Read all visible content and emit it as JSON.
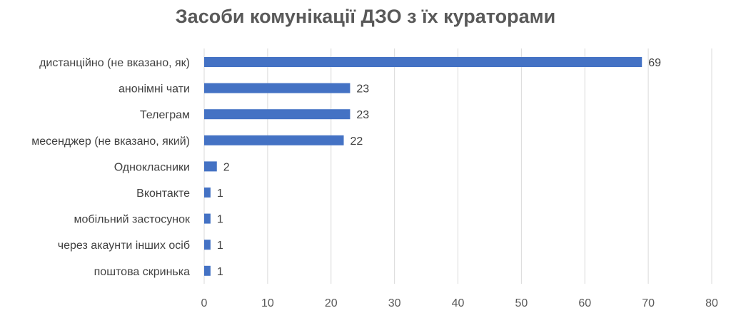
{
  "chart_data": {
    "type": "bar",
    "orientation": "horizontal",
    "title": "Засоби комунікації ДЗО з їх кураторами",
    "xlabel": "",
    "ylabel": "",
    "categories": [
      "дистанційно (не вказано, як)",
      "анонімні чати",
      "Телеграм",
      "месенджер (не вказано, який)",
      "Однокласники",
      "Вконтакте",
      "мобільний застосунок",
      "через акаунти інших осіб",
      "поштова скринька"
    ],
    "values": [
      69,
      23,
      23,
      22,
      2,
      1,
      1,
      1,
      1
    ],
    "xlim": [
      0,
      80
    ],
    "x_ticks": [
      0,
      10,
      20,
      30,
      40,
      50,
      60,
      70,
      80
    ],
    "grid": true,
    "legend": "none",
    "bar_color": "#4472c4",
    "data_labels": true
  }
}
